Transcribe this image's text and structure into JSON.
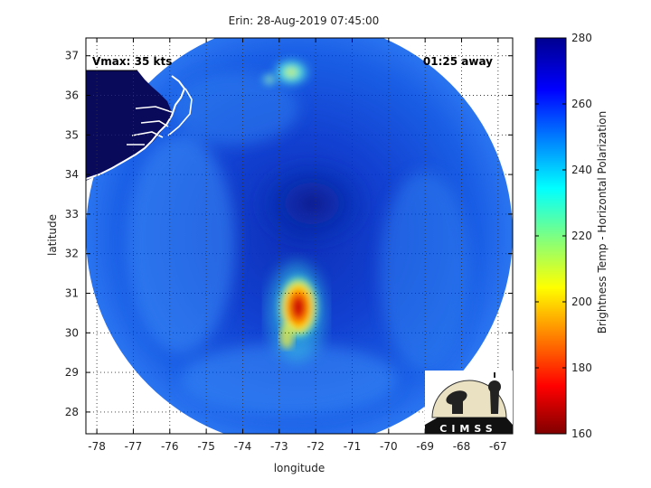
{
  "title": "Erin: 28-Aug-2019 07:45:00",
  "annotations": {
    "vmax": "Vmax: 35 kts",
    "time_away": "01:25 away"
  },
  "axes": {
    "xlabel": "longitude",
    "ylabel": "latitude",
    "x_ticks": [
      -78,
      -77,
      -76,
      -75,
      -74,
      -73,
      -72,
      -71,
      -70,
      -69,
      -68,
      -67
    ],
    "y_ticks": [
      28,
      29,
      30,
      31,
      32,
      33,
      34,
      35,
      36,
      37
    ],
    "xlim": [
      -78.3,
      -66.6
    ],
    "ylim": [
      27.45,
      37.45
    ],
    "grid": true
  },
  "colorbar": {
    "label": "Brightness Temp - Horizontal Polarization",
    "range": [
      160,
      280
    ],
    "ticks": [
      160,
      180,
      200,
      220,
      240,
      260,
      280
    ],
    "colormap": "jet"
  },
  "logo": {
    "text": "CIMSS"
  },
  "colors": {
    "background_blue": "#1a52d8",
    "coast": "#ffffff",
    "land": "#0a0a5a"
  },
  "chart_data": {
    "type": "heatmap",
    "xlabel": "longitude",
    "ylabel": "latitude",
    "xlim": [
      -78.3,
      -66.6
    ],
    "ylim": [
      27.45,
      37.45
    ],
    "swath_center": {
      "lon": -72.4,
      "lat": 32.4,
      "radius_deg": 5.6
    },
    "features": [
      {
        "lon": -72.5,
        "lat": 30.6,
        "tb": 170
      },
      {
        "lon": -72.6,
        "lat": 30.1,
        "tb": 205
      },
      {
        "lon": -73.3,
        "lat": 36.6,
        "tb": 240
      },
      {
        "lon": -72.2,
        "lat": 33.0,
        "tb": 270
      }
    ]
  }
}
